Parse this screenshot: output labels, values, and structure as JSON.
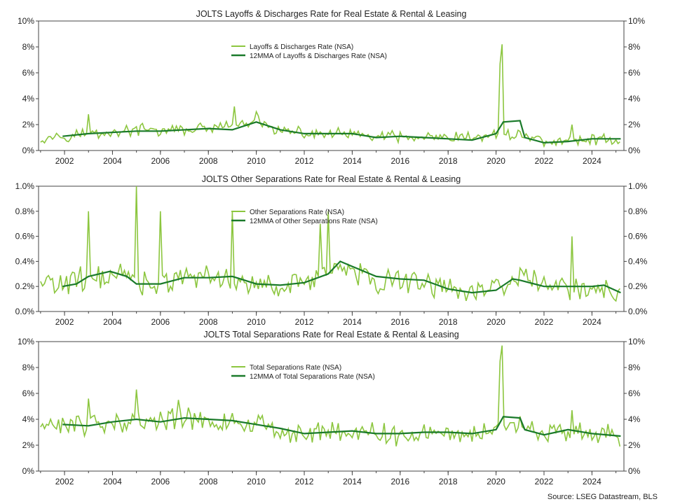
{
  "colors": {
    "raw": "#8cc63f",
    "ma": "#1a7a2a",
    "axis": "#444444"
  },
  "source": "Source: LSEG Datastream, BLS",
  "x_ticks": [
    "2002",
    "2004",
    "2006",
    "2008",
    "2010",
    "2012",
    "2014",
    "2016",
    "2018",
    "2020",
    "2022",
    "2024"
  ],
  "chart_data": [
    {
      "type": "line",
      "title": "JOLTS Layoffs & Discharges Rate for Real Estate & Rental & Leasing",
      "xlim": [
        "2000-12",
        "2025-05"
      ],
      "ylim": [
        0,
        10
      ],
      "y_ticks": [
        "0%",
        "2%",
        "4%",
        "6%",
        "8%",
        "10%"
      ],
      "legend": "top-center",
      "raw_base": [
        [
          2001,
          1.0
        ],
        [
          2002,
          1.2
        ],
        [
          2003,
          1.3
        ],
        [
          2004,
          1.4
        ],
        [
          2005,
          1.6
        ],
        [
          2006,
          1.5
        ],
        [
          2007,
          1.6
        ],
        [
          2008,
          1.7
        ],
        [
          2009,
          1.9
        ],
        [
          2010,
          2.2
        ],
        [
          2011,
          1.5
        ],
        [
          2012,
          1.3
        ],
        [
          2013,
          1.3
        ],
        [
          2014,
          1.2
        ],
        [
          2015,
          1.1
        ],
        [
          2016,
          1.0
        ],
        [
          2017,
          1.0
        ],
        [
          2018,
          0.9
        ],
        [
          2019,
          1.0
        ],
        [
          2020,
          1.2
        ],
        [
          2021,
          1.3
        ],
        [
          2022,
          0.7
        ],
        [
          2023,
          0.7
        ],
        [
          2024,
          0.9
        ],
        [
          2025.2,
          0.8
        ]
      ],
      "spikes": [
        [
          "2003-01",
          2.8
        ],
        [
          "2009-02",
          3.4
        ],
        [
          "2010-01",
          3.0
        ],
        [
          "2020-03",
          6.7
        ],
        [
          "2020-04",
          8.2
        ],
        [
          "2023-03",
          2.0
        ]
      ],
      "noise": 0.55,
      "series": [
        {
          "name": "Layoffs & Discharges Rate (NSA)",
          "values": [
            [
              2001.0,
              1.0
            ],
            [
              2005.0,
              1.6
            ],
            [
              2009.1,
              3.4
            ],
            [
              2010.0,
              3.0
            ],
            [
              2020.25,
              8.2
            ],
            [
              2025.2,
              0.8
            ]
          ]
        },
        {
          "name": "12MMA of Layoffs & Discharges Rate (NSA)",
          "values": [
            [
              2001.92,
              1.1
            ],
            [
              2003,
              1.3
            ],
            [
              2005,
              1.5
            ],
            [
              2006,
              1.5
            ],
            [
              2008,
              1.7
            ],
            [
              2009,
              1.6
            ],
            [
              2010,
              2.2
            ],
            [
              2011,
              1.6
            ],
            [
              2012,
              1.3
            ],
            [
              2014,
              1.3
            ],
            [
              2015,
              1.0
            ],
            [
              2016,
              1.1
            ],
            [
              2017,
              1.0
            ],
            [
              2018,
              0.9
            ],
            [
              2019,
              0.8
            ],
            [
              2020,
              1.3
            ],
            [
              2020.3,
              2.2
            ],
            [
              2021,
              2.3
            ],
            [
              2021.2,
              1.0
            ],
            [
              2022,
              0.6
            ],
            [
              2023,
              0.7
            ],
            [
              2024,
              0.9
            ],
            [
              2025.2,
              0.9
            ]
          ]
        }
      ]
    },
    {
      "type": "line",
      "title": "JOLTS Other Separations Rate for Real Estate & Rental & Leasing",
      "xlim": [
        "2000-12",
        "2025-05"
      ],
      "ylim": [
        0,
        1.0
      ],
      "y_ticks": [
        "0.0%",
        "0.2%",
        "0.4%",
        "0.6%",
        "0.8%",
        "1.0%"
      ],
      "legend": "top-center",
      "raw_base": [
        [
          2001,
          0.22
        ],
        [
          2002,
          0.22
        ],
        [
          2003,
          0.26
        ],
        [
          2004,
          0.3
        ],
        [
          2005,
          0.25
        ],
        [
          2006,
          0.22
        ],
        [
          2007,
          0.27
        ],
        [
          2008,
          0.28
        ],
        [
          2009,
          0.25
        ],
        [
          2010,
          0.22
        ],
        [
          2011,
          0.22
        ],
        [
          2012,
          0.24
        ],
        [
          2013,
          0.33
        ],
        [
          2014,
          0.32
        ],
        [
          2015,
          0.25
        ],
        [
          2016,
          0.25
        ],
        [
          2017,
          0.24
        ],
        [
          2018,
          0.18
        ],
        [
          2019,
          0.15
        ],
        [
          2020,
          0.2
        ],
        [
          2021,
          0.26
        ],
        [
          2022,
          0.2
        ],
        [
          2023,
          0.2
        ],
        [
          2024,
          0.2
        ],
        [
          2025.2,
          0.16
        ]
      ],
      "spikes": [
        [
          "2003-01",
          0.8
        ],
        [
          "2005-01",
          1.0
        ],
        [
          "2006-01",
          0.8
        ],
        [
          "2009-01",
          0.8
        ],
        [
          "2012-09",
          0.7
        ],
        [
          "2013-01",
          0.8
        ],
        [
          "2023-03",
          0.6
        ]
      ],
      "noise": 0.12,
      "series": [
        {
          "name": "Other Separations Rate (NSA)",
          "values": [
            [
              2001.0,
              0.4
            ],
            [
              2005.1,
              1.0
            ],
            [
              2013.1,
              0.8
            ],
            [
              2025.2,
              0.29
            ]
          ]
        },
        {
          "name": "12MMA of Other Separations Rate (NSA)",
          "values": [
            [
              2001.92,
              0.2
            ],
            [
              2002.5,
              0.22
            ],
            [
              2003,
              0.28
            ],
            [
              2003.9,
              0.32
            ],
            [
              2004.6,
              0.28
            ],
            [
              2005,
              0.22
            ],
            [
              2006,
              0.22
            ],
            [
              2007,
              0.27
            ],
            [
              2008,
              0.27
            ],
            [
              2009,
              0.28
            ],
            [
              2010,
              0.22
            ],
            [
              2011,
              0.21
            ],
            [
              2012,
              0.23
            ],
            [
              2013,
              0.3
            ],
            [
              2013.5,
              0.4
            ],
            [
              2014,
              0.36
            ],
            [
              2015,
              0.28
            ],
            [
              2016,
              0.26
            ],
            [
              2017,
              0.25
            ],
            [
              2018,
              0.18
            ],
            [
              2019,
              0.15
            ],
            [
              2020,
              0.17
            ],
            [
              2020.7,
              0.26
            ],
            [
              2021,
              0.25
            ],
            [
              2022,
              0.2
            ],
            [
              2023,
              0.2
            ],
            [
              2024,
              0.2
            ],
            [
              2024.5,
              0.21
            ],
            [
              2025.2,
              0.15
            ]
          ]
        }
      ]
    },
    {
      "type": "line",
      "title": "JOLTS Total Separations Rate for Real Estate & Rental & Leasing",
      "xlim": [
        "2000-12",
        "2025-05"
      ],
      "ylim": [
        0,
        10
      ],
      "y_ticks": [
        "0%",
        "2%",
        "4%",
        "6%",
        "8%",
        "10%"
      ],
      "legend": "top-center",
      "raw_base": [
        [
          2001,
          3.4
        ],
        [
          2002,
          3.5
        ],
        [
          2003,
          3.6
        ],
        [
          2004,
          3.8
        ],
        [
          2005,
          4.0
        ],
        [
          2006,
          3.8
        ],
        [
          2007,
          4.1
        ],
        [
          2008,
          3.9
        ],
        [
          2009,
          3.8
        ],
        [
          2010,
          3.6
        ],
        [
          2011,
          3.1
        ],
        [
          2012,
          2.9
        ],
        [
          2013,
          3.1
        ],
        [
          2014,
          3.1
        ],
        [
          2015,
          2.9
        ],
        [
          2016,
          2.9
        ],
        [
          2017,
          3.0
        ],
        [
          2018,
          2.9
        ],
        [
          2019,
          2.9
        ],
        [
          2020,
          3.3
        ],
        [
          2021,
          3.4
        ],
        [
          2022,
          2.9
        ],
        [
          2023,
          3.0
        ],
        [
          2024,
          2.9
        ],
        [
          2025.2,
          2.7
        ]
      ],
      "spikes": [
        [
          "2003-01",
          5.6
        ],
        [
          "2005-01",
          6.3
        ],
        [
          "2006-10",
          5.5
        ],
        [
          "2020-03",
          8.5
        ],
        [
          "2020-04",
          9.7
        ],
        [
          "2023-03",
          4.7
        ]
      ],
      "noise": 1.0,
      "series": [
        {
          "name": "Total Separations Rate (NSA)",
          "values": [
            [
              2001.0,
              2.5
            ],
            [
              2005.1,
              6.3
            ],
            [
              2020.25,
              9.7
            ],
            [
              2025.2,
              2.2
            ]
          ]
        },
        {
          "name": "12MMA of Total Separations Rate (NSA)",
          "values": [
            [
              2001.92,
              3.6
            ],
            [
              2003,
              3.5
            ],
            [
              2004,
              3.8
            ],
            [
              2005,
              4.0
            ],
            [
              2006,
              3.8
            ],
            [
              2007,
              4.1
            ],
            [
              2008,
              4.0
            ],
            [
              2009,
              3.9
            ],
            [
              2010,
              3.6
            ],
            [
              2011,
              3.3
            ],
            [
              2012,
              2.9
            ],
            [
              2013,
              3.0
            ],
            [
              2014,
              3.1
            ],
            [
              2015,
              2.9
            ],
            [
              2016,
              2.9
            ],
            [
              2017,
              3.0
            ],
            [
              2018,
              3.0
            ],
            [
              2019,
              2.9
            ],
            [
              2020,
              3.2
            ],
            [
              2020.3,
              4.2
            ],
            [
              2021,
              4.1
            ],
            [
              2021.2,
              3.2
            ],
            [
              2022,
              2.8
            ],
            [
              2023,
              3.2
            ],
            [
              2024,
              2.9
            ],
            [
              2025.2,
              2.7
            ]
          ]
        }
      ]
    }
  ]
}
